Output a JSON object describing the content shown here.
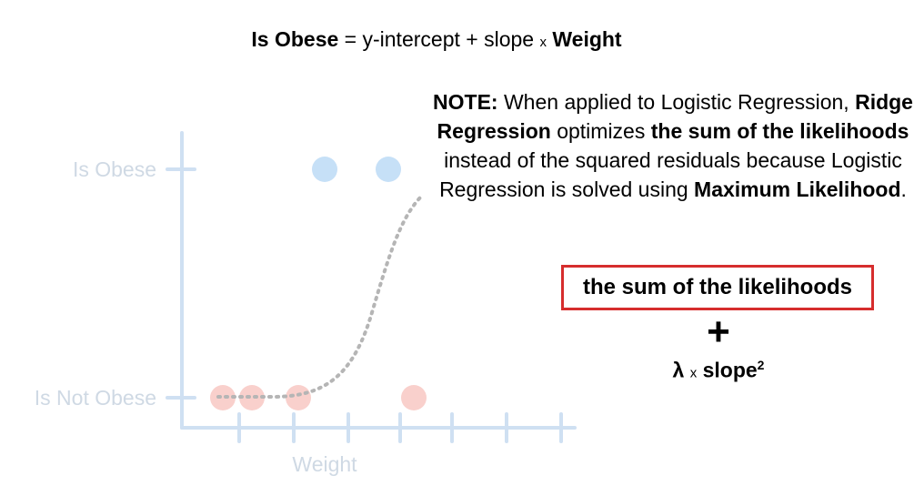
{
  "equation": {
    "lhs": "Is Obese",
    "equals": "=",
    "intercept": "y-intercept",
    "plus": "+",
    "slope": "slope",
    "times": "x",
    "rhs": "Weight"
  },
  "plot": {
    "y_label_top": "Is Obese",
    "y_label_bottom": "Is Not Obese",
    "x_label": "Weight",
    "axis_color": "#cfe0f2",
    "obese_color": "#c6e0f7",
    "not_obese_color": "#f9d0cc",
    "curve_color": "#b5b5b5"
  },
  "note": {
    "heading": "NOTE:",
    "t1": " When applied to Logistic Regression, ",
    "b1": "Ridge Regression",
    "t2": " optimizes ",
    "b2": "the sum of the likelihoods",
    "t3": " instead of the squared residuals because Logistic Regression is solved using ",
    "b3": "Maximum Likelihood",
    "t4": "."
  },
  "formula": {
    "boxed": "the sum of the likelihoods",
    "plus": "+",
    "lambda": "λ",
    "times": "x",
    "slope": "slope",
    "exponent": "2"
  }
}
